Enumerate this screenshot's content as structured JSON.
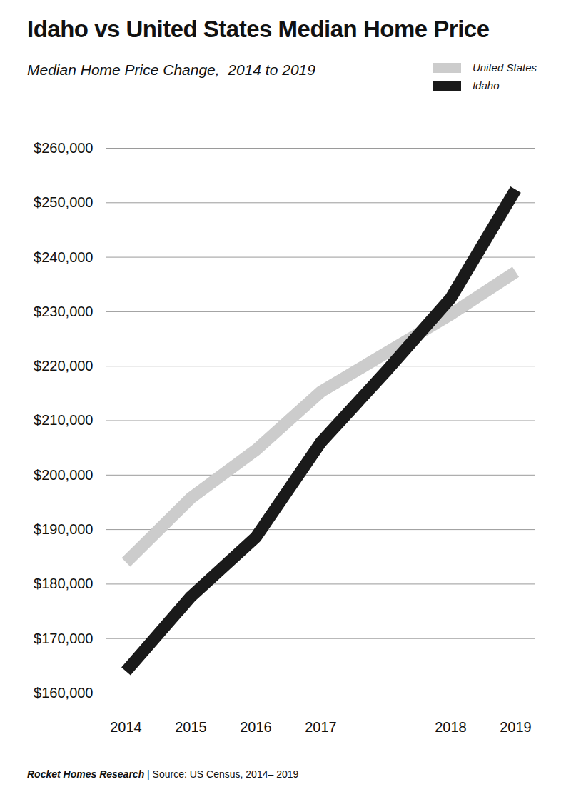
{
  "chart_data": {
    "type": "line",
    "title": "Idaho vs United States Median Home Price",
    "subtitle": "Median Home Price Change,  2014 to 2019",
    "caption": "Rocket Homes Research | Source: US Census, 2014– 2019",
    "categories": [
      "2014",
      "2015",
      "2016",
      "2017",
      null,
      "2018",
      "2019"
    ],
    "series": [
      {
        "name": "United States",
        "color": "#cccccc",
        "values": [
          184000,
          195800,
          204600,
          215300,
          222400,
          229500,
          237300
        ]
      },
      {
        "name": "Idaho",
        "color": "#1a1a1a",
        "values": [
          164000,
          177700,
          188600,
          206000,
          219000,
          232500,
          252400
        ]
      }
    ],
    "ylim": [
      160000,
      260000
    ],
    "yticks": [
      {
        "value": 160000,
        "label": "$160,000"
      },
      {
        "value": 170000,
        "label": "$170,000"
      },
      {
        "value": 180000,
        "label": "$180,000"
      },
      {
        "value": 190000,
        "label": "$190,000"
      },
      {
        "value": 200000,
        "label": "$200,000"
      },
      {
        "value": 210000,
        "label": "$210,000"
      },
      {
        "value": 220000,
        "label": "$220,000"
      },
      {
        "value": 230000,
        "label": "$230,000"
      },
      {
        "value": 240000,
        "label": "$240,000"
      },
      {
        "value": 250000,
        "label": "$250,000"
      },
      {
        "value": 260000,
        "label": "$260,000"
      }
    ],
    "grid": true,
    "legend": "top-right"
  }
}
